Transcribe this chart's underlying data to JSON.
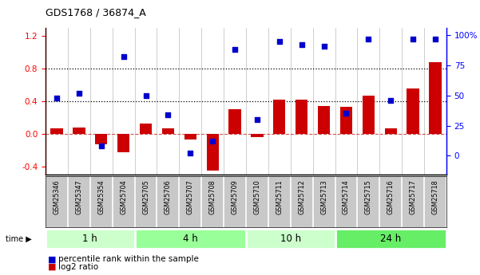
{
  "title": "GDS1768 / 36874_A",
  "samples": [
    "GSM25346",
    "GSM25347",
    "GSM25354",
    "GSM25704",
    "GSM25705",
    "GSM25706",
    "GSM25707",
    "GSM25708",
    "GSM25709",
    "GSM25710",
    "GSM25711",
    "GSM25712",
    "GSM25713",
    "GSM25714",
    "GSM25715",
    "GSM25716",
    "GSM25717",
    "GSM25718"
  ],
  "log2_ratio": [
    0.07,
    0.08,
    -0.13,
    -0.23,
    0.12,
    0.07,
    -0.07,
    -0.45,
    0.3,
    -0.04,
    0.42,
    0.42,
    0.34,
    0.33,
    0.47,
    0.07,
    0.55,
    0.88
  ],
  "percentile_pct": [
    48,
    52,
    8,
    82,
    50,
    34,
    2,
    12,
    88,
    30,
    95,
    92,
    91,
    35,
    97,
    46,
    97,
    97
  ],
  "groups": [
    {
      "label": "1 h",
      "start": 0,
      "end": 4,
      "color": "#ccffcc"
    },
    {
      "label": "4 h",
      "start": 4,
      "end": 9,
      "color": "#99ff99"
    },
    {
      "label": "10 h",
      "start": 9,
      "end": 13,
      "color": "#ccffcc"
    },
    {
      "label": "24 h",
      "start": 13,
      "end": 18,
      "color": "#66ee66"
    }
  ],
  "left_ylim": [
    -0.5,
    1.3
  ],
  "right_ylim": [
    -15.625,
    106.25
  ],
  "left_yticks": [
    -0.4,
    0.0,
    0.4,
    0.8,
    1.2
  ],
  "right_yticks": [
    0,
    25,
    50,
    75,
    100
  ],
  "hlines": [
    0.8,
    0.4
  ],
  "bar_color": "#cc0000",
  "dot_color": "#0000cc",
  "plot_bg": "#ffffff",
  "fig_bg": "#ffffff",
  "bar_width": 0.55,
  "legend_bar": "log2 ratio",
  "legend_dot": "percentile rank within the sample",
  "time_label": "time"
}
